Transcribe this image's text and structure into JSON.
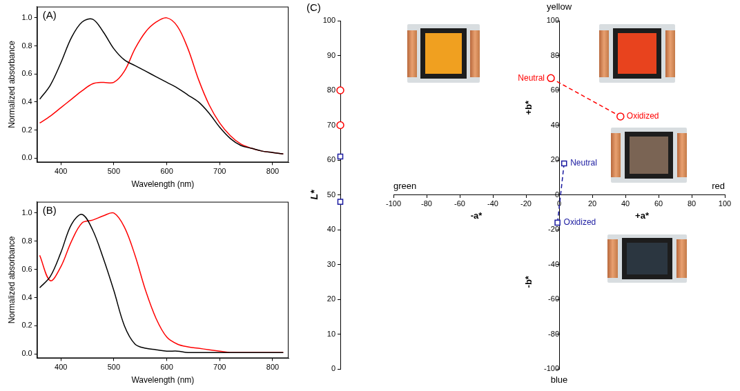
{
  "chart_data": [
    {
      "type": "line",
      "panel_label": "(A)",
      "x_label": "Wavelength (nm)",
      "y_label": "Normalized absorbance",
      "xlim": [
        355,
        830
      ],
      "xticks": [
        400,
        500,
        600,
        700,
        800
      ],
      "ylim": [
        -0.03,
        1.08
      ],
      "yticks": [
        {
          "value": 0,
          "label": "0.0"
        },
        0.2,
        0.4,
        0.6,
        0.8,
        {
          "value": 1,
          "label": "1.0"
        }
      ],
      "grid": false,
      "x": [
        360,
        380,
        400,
        420,
        440,
        460,
        480,
        500,
        520,
        540,
        560,
        580,
        600,
        620,
        640,
        660,
        680,
        700,
        720,
        740,
        760,
        780,
        800,
        820
      ],
      "series": [
        {
          "color": "#000000",
          "values": [
            0.42,
            0.52,
            0.68,
            0.86,
            0.97,
            0.99,
            0.9,
            0.78,
            0.7,
            0.66,
            0.62,
            0.58,
            0.54,
            0.5,
            0.45,
            0.4,
            0.32,
            0.22,
            0.14,
            0.09,
            0.07,
            0.05,
            0.04,
            0.03
          ]
        },
        {
          "color": "#ff0000",
          "values": [
            0.25,
            0.3,
            0.36,
            0.42,
            0.48,
            0.53,
            0.54,
            0.54,
            0.62,
            0.78,
            0.9,
            0.97,
            1.0,
            0.94,
            0.78,
            0.56,
            0.38,
            0.25,
            0.16,
            0.1,
            0.07,
            0.05,
            0.04,
            0.03
          ]
        }
      ]
    },
    {
      "type": "line",
      "panel_label": "(B)",
      "x_label": "Wavelength (nm)",
      "y_label": "Normalized absorbance",
      "xlim": [
        355,
        830
      ],
      "xticks": [
        400,
        500,
        600,
        700,
        800
      ],
      "ylim": [
        -0.03,
        1.08
      ],
      "yticks": [
        {
          "value": 0,
          "label": "0.0"
        },
        0.2,
        0.4,
        0.6,
        0.8,
        {
          "value": 1,
          "label": "1.0"
        }
      ],
      "grid": false,
      "x": [
        360,
        380,
        400,
        420,
        440,
        460,
        480,
        500,
        520,
        540,
        560,
        580,
        600,
        620,
        640,
        660,
        680,
        700,
        720,
        740,
        760,
        780,
        800,
        820
      ],
      "series": [
        {
          "color": "#000000",
          "values": [
            0.47,
            0.55,
            0.72,
            0.92,
            0.99,
            0.88,
            0.68,
            0.45,
            0.2,
            0.07,
            0.04,
            0.03,
            0.02,
            0.02,
            0.01,
            0.01,
            0.01,
            0.01,
            0.01,
            0.01,
            0.01,
            0.01,
            0.01,
            0.01
          ]
        },
        {
          "color": "#ff0000",
          "values": [
            0.7,
            0.52,
            0.62,
            0.8,
            0.93,
            0.95,
            0.98,
            1.0,
            0.9,
            0.7,
            0.45,
            0.25,
            0.12,
            0.07,
            0.05,
            0.04,
            0.03,
            0.02,
            0.01,
            0.01,
            0.01,
            0.01,
            0.01,
            0.01
          ]
        }
      ]
    },
    {
      "type": "scatter",
      "panel_label": "(C)",
      "y_label": "L*",
      "ylim": [
        0,
        100
      ],
      "yticks": [
        0,
        10,
        20,
        30,
        40,
        50,
        60,
        70,
        80,
        90,
        100
      ],
      "grid": false,
      "series": [
        {
          "color": "#ff0000",
          "marker": "circle",
          "values": [
            80,
            70
          ]
        },
        {
          "color": "#1a1aa0",
          "marker": "square",
          "values": [
            61,
            48
          ]
        }
      ]
    },
    {
      "type": "scatter",
      "x_label_negative": "-a*",
      "x_label_positive": "+a*",
      "y_label_positive": "+b*",
      "y_label_negative": "-b*",
      "x_end_labels": [
        "green",
        "red"
      ],
      "y_end_labels": [
        "blue",
        "yellow"
      ],
      "xlim": [
        -100,
        100
      ],
      "xticks": [
        -100,
        -80,
        -60,
        -40,
        -20,
        0,
        20,
        40,
        60,
        80,
        100
      ],
      "ylim": [
        -100,
        100
      ],
      "yticks": [
        -100,
        -80,
        -60,
        -40,
        -20,
        0,
        20,
        40,
        60,
        80,
        100
      ],
      "grid": false,
      "series": [
        {
          "color": "#ff0000",
          "marker": "circle",
          "line_style": "dashed",
          "x": [
            -5,
            37
          ],
          "values": [
            67,
            45
          ],
          "point_labels": [
            "Neutral",
            "Oxidized"
          ]
        },
        {
          "color": "#1a1aa0",
          "marker": "square",
          "line_style": "dashed",
          "x": [
            3,
            -1
          ],
          "values": [
            18,
            -16
          ],
          "point_labels": [
            "Neutral",
            "Oxidized"
          ]
        }
      ]
    }
  ]
}
